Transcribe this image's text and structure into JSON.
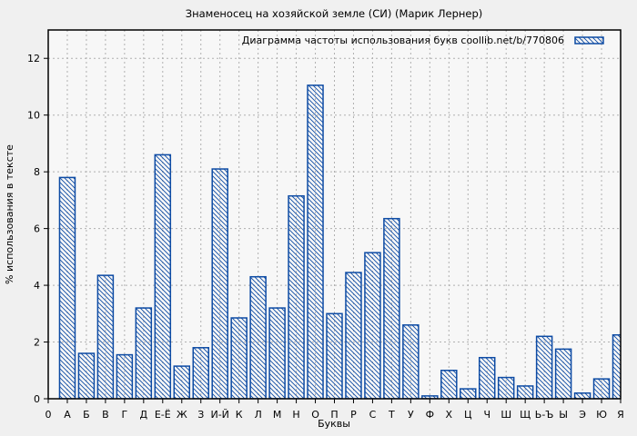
{
  "chart_data": {
    "type": "bar",
    "title": "Знаменосец на хозяйской земле (СИ) (Марик Лернер)",
    "legend": "Диаграмма частоты использования букв coollib.net/b/770806",
    "legend_position": "top-right-inside",
    "xlabel": "Буквы",
    "ylabel": "% использования в тексте",
    "ylim": [
      0,
      13
    ],
    "yticks": [
      0,
      2,
      4,
      6,
      8,
      10,
      12
    ],
    "origin_tick_label": "0",
    "grid": true,
    "categories": [
      "А",
      "Б",
      "В",
      "Г",
      "Д",
      "Е-Ё",
      "Ж",
      "З",
      "И-Й",
      "К",
      "Л",
      "М",
      "Н",
      "О",
      "П",
      "Р",
      "С",
      "Т",
      "У",
      "Ф",
      "Х",
      "Ц",
      "Ч",
      "Ш",
      "Щ",
      "Ь-Ъ",
      "Ы",
      "Э",
      "Ю",
      "Я"
    ],
    "values": [
      7.8,
      1.6,
      4.35,
      1.55,
      3.2,
      8.6,
      1.15,
      1.8,
      8.1,
      2.85,
      4.3,
      3.2,
      7.15,
      11.05,
      3.0,
      4.45,
      5.15,
      6.35,
      2.6,
      0.1,
      1.0,
      0.35,
      1.45,
      0.75,
      0.45,
      2.2,
      1.75,
      0.2,
      0.7,
      2.25
    ],
    "bar_fill": "diagonal-hatch",
    "colors": {
      "bar": "#0d4ba4",
      "grid": "#b0b0b0",
      "frame": "#000000",
      "page_background": "#f0f0f0",
      "plot_background": "#f7f7f7",
      "text": "#000000"
    }
  }
}
